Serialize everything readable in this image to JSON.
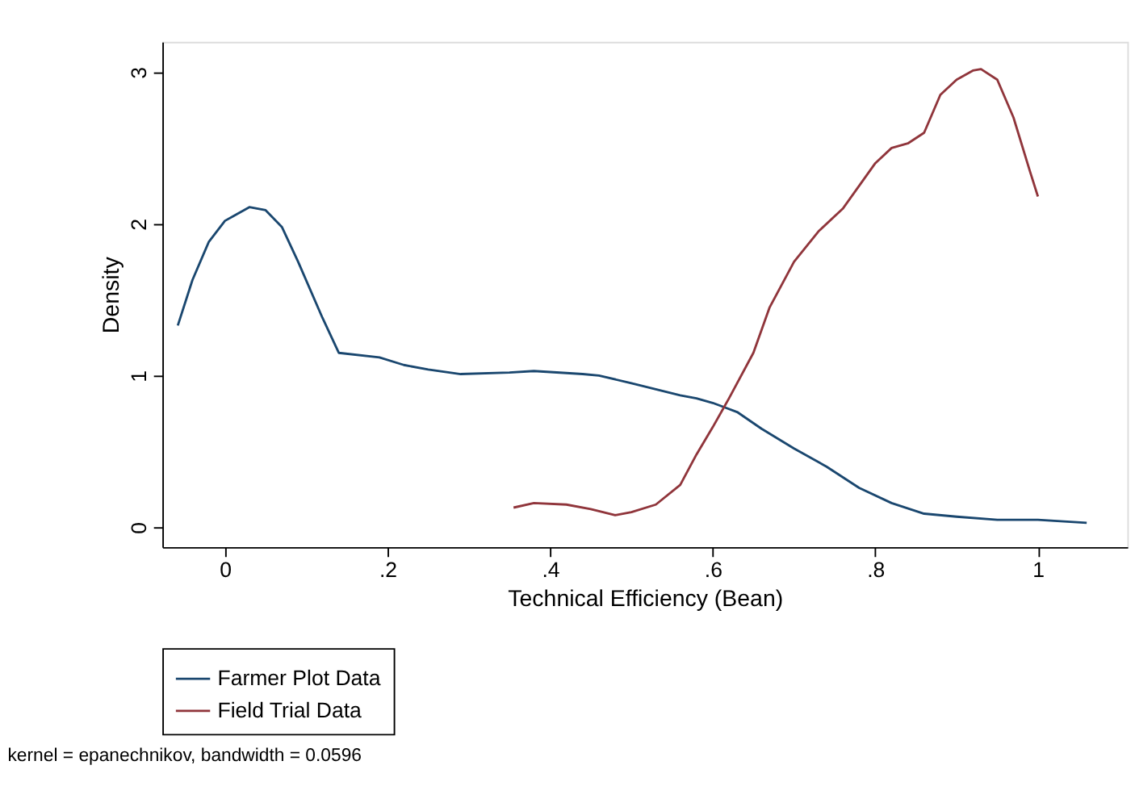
{
  "chart_data": {
    "type": "line",
    "xlabel": "Technical Efficiency (Bean)",
    "ylabel": "Density",
    "annotations": [
      "kernel = epanechnikov, bandwidth = 0.0596"
    ],
    "xlim": [
      -0.077,
      1.11
    ],
    "ylim": [
      -0.13,
      3.2
    ],
    "xticks": [
      0,
      {
        "value": 0.2,
        "label": ".2"
      },
      {
        "value": 0.4,
        "label": ".4"
      },
      {
        "value": 0.6,
        "label": ".6"
      },
      {
        "value": 0.8,
        "label": ".8"
      },
      1
    ],
    "yticks": [
      0,
      1,
      2,
      3
    ],
    "grid": false,
    "legend": "bottom",
    "marker": "none",
    "line_style": "solid",
    "series": [
      {
        "name": "Farmer Plot Data",
        "color": "#1a476f",
        "x": [
          -0.058,
          -0.04,
          -0.02,
          0.0,
          0.01,
          0.03,
          0.05,
          0.07,
          0.09,
          0.12,
          0.14,
          0.19,
          0.22,
          0.25,
          0.29,
          0.35,
          0.38,
          0.44,
          0.46,
          0.5,
          0.56,
          0.58,
          0.6,
          0.63,
          0.66,
          0.7,
          0.74,
          0.78,
          0.82,
          0.86,
          0.9,
          0.95,
          1.0,
          1.06
        ],
        "values": [
          1.33,
          1.63,
          1.88,
          2.02,
          2.05,
          2.11,
          2.09,
          1.98,
          1.75,
          1.38,
          1.15,
          1.12,
          1.07,
          1.04,
          1.01,
          1.02,
          1.03,
          1.01,
          1.0,
          0.95,
          0.87,
          0.85,
          0.82,
          0.76,
          0.65,
          0.52,
          0.4,
          0.26,
          0.16,
          0.09,
          0.07,
          0.05,
          0.05,
          0.03
        ]
      },
      {
        "name": "Field Trial Data",
        "color": "#90353b",
        "x": [
          0.355,
          0.38,
          0.42,
          0.45,
          0.48,
          0.5,
          0.53,
          0.56,
          0.58,
          0.6,
          0.62,
          0.65,
          0.67,
          0.7,
          0.73,
          0.76,
          0.78,
          0.8,
          0.82,
          0.84,
          0.86,
          0.88,
          0.9,
          0.92,
          0.93,
          0.95,
          0.97,
          0.99,
          1.0
        ],
        "values": [
          0.13,
          0.16,
          0.15,
          0.12,
          0.08,
          0.1,
          0.15,
          0.28,
          0.48,
          0.66,
          0.85,
          1.15,
          1.45,
          1.75,
          1.95,
          2.1,
          2.25,
          2.4,
          2.5,
          2.53,
          2.6,
          2.85,
          2.95,
          3.01,
          3.02,
          2.95,
          2.7,
          2.35,
          2.18
        ]
      }
    ]
  }
}
